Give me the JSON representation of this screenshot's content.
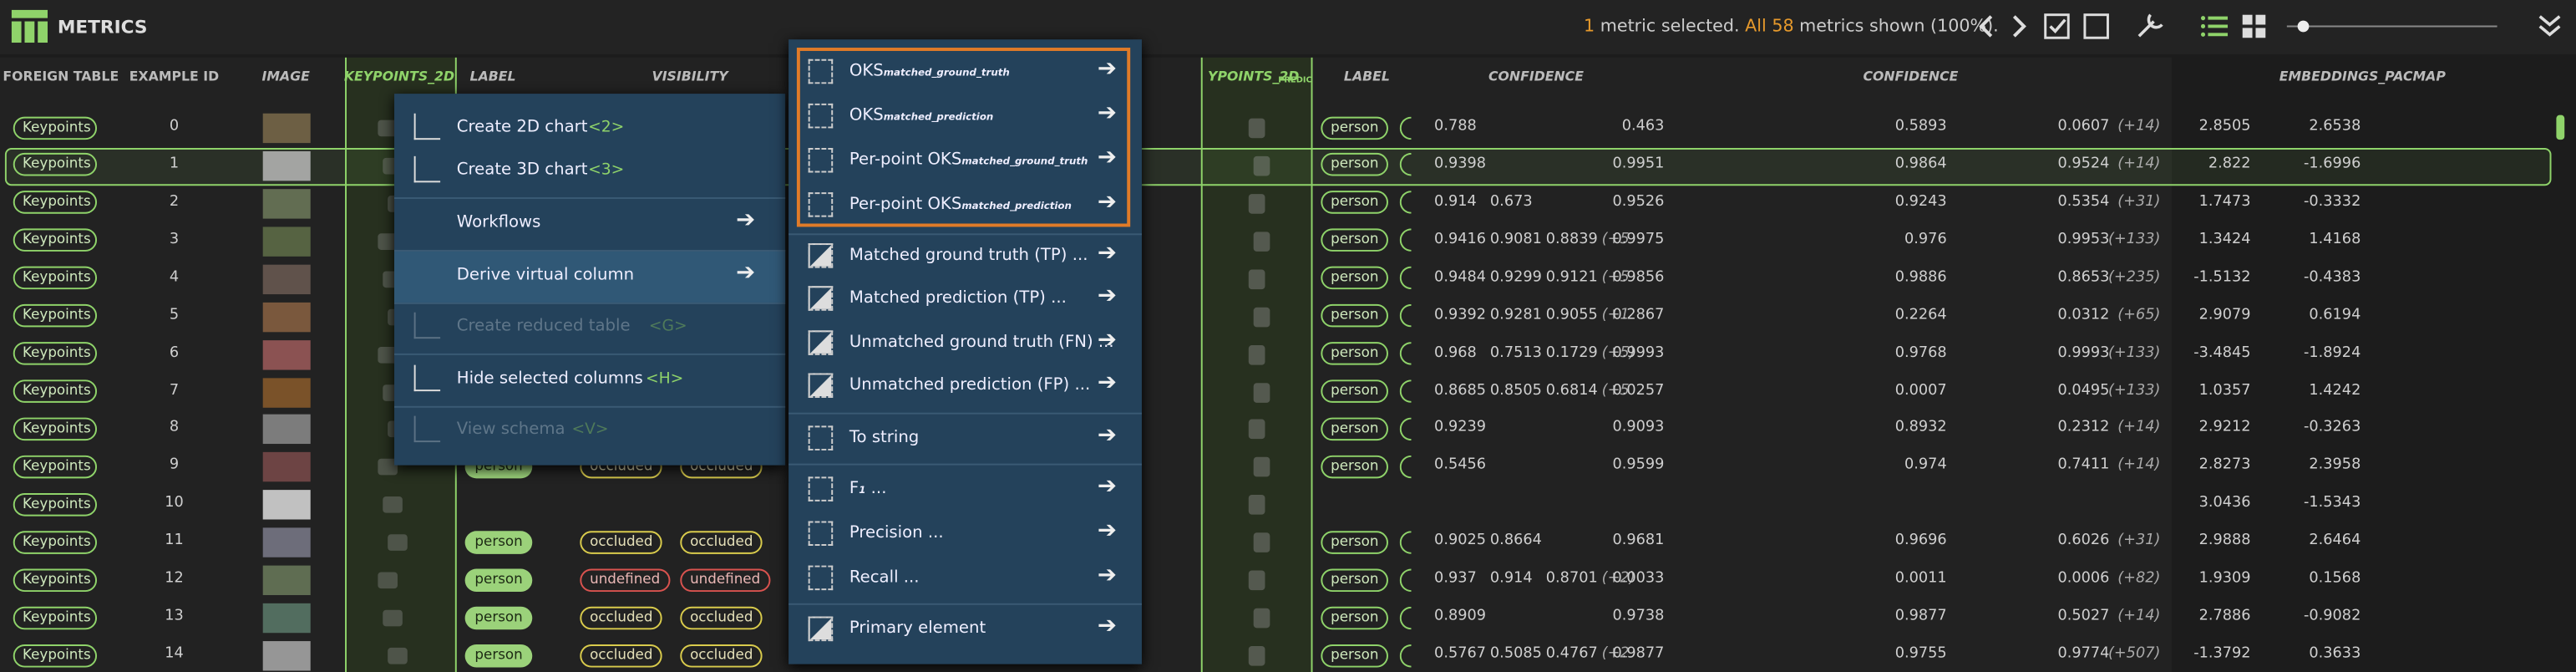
{
  "header": {
    "title": "METRICS",
    "count": "1",
    "text1": " metric selected. ",
    "all": "All 58",
    "text2": " metrics shown (100%)."
  },
  "columns": [
    "FOREIGN TABLE",
    "EXAMPLE ID",
    "IMAGE",
    "KEYPOINTS_2D",
    "LABEL",
    "VISIBILITY",
    "YPOINTS_2D",
    "LABEL",
    "CONFIDENCE",
    "CONFIDENCE",
    "EMBEDDINGS_PACMAP"
  ],
  "column_sub": "PREDIC",
  "rows": [
    {
      "foreign": "Keypoints",
      "id": 0,
      "pred_label": "person",
      "conf": [
        0.788
      ],
      "c1": 0.463,
      "c2": 0.5893,
      "c3": 0.0607,
      "n": "(+14)",
      "e1": 2.8505,
      "e2": 2.6538
    },
    {
      "foreign": "Keypoints",
      "id": 1,
      "pred_label": "person",
      "conf": [
        0.9398
      ],
      "c1": 0.9951,
      "c2": 0.9864,
      "c3": 0.9524,
      "n": "(+14)",
      "e1": 2.822,
      "e2": -1.6996
    },
    {
      "foreign": "Keypoints",
      "id": 2,
      "pred_label": "person",
      "conf": [
        0.914,
        0.673
      ],
      "c1": 0.9526,
      "c2": 0.9243,
      "c3": 0.5354,
      "n": "(+31)",
      "e1": 1.7473,
      "e2": -0.3332
    },
    {
      "foreign": "Keypoints",
      "id": 3,
      "pred_label": "person",
      "conf": [
        0.9416,
        0.9081,
        0.8839
      ],
      "conf_more": "(+5",
      "c1": 0.9975,
      "c2": 0.976,
      "c3": 0.9953,
      "n": "(+133)",
      "e1": 1.3424,
      "e2": 1.4168
    },
    {
      "foreign": "Keypoints",
      "id": 4,
      "pred_label": "person",
      "conf": [
        0.9484,
        0.9299,
        0.9121
      ],
      "conf_more": "(+5",
      "c1": 0.9856,
      "c2": 0.9886,
      "c3": 0.8653,
      "n": "(+235)",
      "e1": -1.5132,
      "e2": -0.4383
    },
    {
      "foreign": "Keypoints",
      "id": 5,
      "pred_label": "person",
      "conf": [
        0.9392,
        0.9281,
        0.9055
      ],
      "conf_more": "(+1",
      "c1": 0.2867,
      "c2": 0.2264,
      "c3": 0.0312,
      "n": "(+65)",
      "e1": 2.9079,
      "e2": 0.6194
    },
    {
      "foreign": "Keypoints",
      "id": 6,
      "pred_label": "person",
      "conf": [
        0.968,
        0.7513,
        0.1729
      ],
      "conf_more": "(+5)",
      "c1": 0.9993,
      "c2": 0.9768,
      "c3": 0.9993,
      "n": "(+133)",
      "e1": -3.4845,
      "e2": -1.8924
    },
    {
      "foreign": "Keypoints",
      "id": 7,
      "pred_label": "person",
      "conf": [
        0.8685,
        0.8505,
        0.6814
      ],
      "conf_more": "(+5",
      "c1": 0.0257,
      "c2": 0.0007,
      "c3": 0.0495,
      "n": "(+133)",
      "e1": 1.0357,
      "e2": 1.4242
    },
    {
      "foreign": "Keypoints",
      "id": 8,
      "pred_label": "person",
      "conf": [
        0.9239
      ],
      "c1": 0.9093,
      "c2": 0.8932,
      "c3": 0.2312,
      "n": "(+14)",
      "e1": 2.9212,
      "e2": -0.3263
    },
    {
      "foreign": "Keypoints",
      "id": 9,
      "label": "person",
      "vis": [
        "occluded",
        "occluded"
      ],
      "pred_label": "person",
      "conf": [
        0.5456
      ],
      "c1": 0.9599,
      "c2": 0.974,
      "c3": 0.7411,
      "n": "(+14)",
      "e1": 2.8273,
      "e2": 2.3958
    },
    {
      "foreign": "Keypoints",
      "id": 10,
      "e1": 3.0436,
      "e2": -1.5343
    },
    {
      "foreign": "Keypoints",
      "id": 11,
      "label": "person",
      "vis": [
        "occluded",
        "occluded"
      ],
      "pred_label": "person",
      "conf": [
        0.9025,
        0.8664
      ],
      "c1": 0.9681,
      "c2": 0.9696,
      "c3": 0.6026,
      "n": "(+31)",
      "e1": 2.9888,
      "e2": 2.6464
    },
    {
      "foreign": "Keypoints",
      "id": 12,
      "label": "person",
      "vis": [
        "undefined",
        "undefined"
      ],
      "pred_label": "person",
      "conf": [
        0.937,
        0.914,
        0.8701
      ],
      "conf_more": "(+2)",
      "c1": 0.0033,
      "c2": 0.0011,
      "c3": 0.0006,
      "n": "(+82)",
      "e1": 1.9309,
      "e2": 0.1568
    },
    {
      "foreign": "Keypoints",
      "id": 13,
      "label": "person",
      "vis": [
        "occluded",
        "occluded"
      ],
      "pred_label": "person",
      "conf": [
        0.8909
      ],
      "c1": 0.9738,
      "c2": 0.9877,
      "c3": 0.5027,
      "n": "(+14)",
      "e1": 2.7886,
      "e2": -0.9082
    },
    {
      "foreign": "Keypoints",
      "id": 14,
      "label": "person",
      "vis": [
        "occluded",
        "occluded"
      ],
      "pred_label": "person",
      "conf": [
        0.5767,
        0.5085,
        0.4767
      ],
      "conf_more": "(+2",
      "c1": 0.9877,
      "c2": 0.9755,
      "c3": 0.9774,
      "n": "(+507)",
      "e1": -1.3792,
      "e2": 0.3633
    }
  ],
  "menu": [
    {
      "label": "Create 2D chart",
      "shortcut": "<2>"
    },
    {
      "label": "Create 3D chart",
      "shortcut": "<3>"
    },
    {
      "label": "Workflows"
    },
    {
      "label": "Derive virtual column"
    },
    {
      "label": "Create reduced table",
      "shortcut": "<G>"
    },
    {
      "label": "Hide selected columns",
      "shortcut": "<H>"
    },
    {
      "label": "View schema",
      "shortcut": "<V>"
    }
  ],
  "submenu": [
    {
      "label": "OKS",
      "sub": "matched_ground_truth"
    },
    {
      "label": "OKS",
      "sub": "matched_prediction"
    },
    {
      "label": "Per-point OKS",
      "sub": "matched_ground_truth"
    },
    {
      "label": "Per-point OKS",
      "sub": "matched_prediction"
    },
    {
      "label": "Matched ground truth (TP) ..."
    },
    {
      "label": "Matched prediction (TP) ..."
    },
    {
      "label": "Unmatched ground truth (FN) ..."
    },
    {
      "label": "Unmatched prediction (FP) ..."
    },
    {
      "label": "To string"
    },
    {
      "label": "F",
      "sub": "1",
      "tail": " ..."
    },
    {
      "label": "Precision ..."
    },
    {
      "label": "Recall ..."
    },
    {
      "label": "Primary element"
    }
  ]
}
